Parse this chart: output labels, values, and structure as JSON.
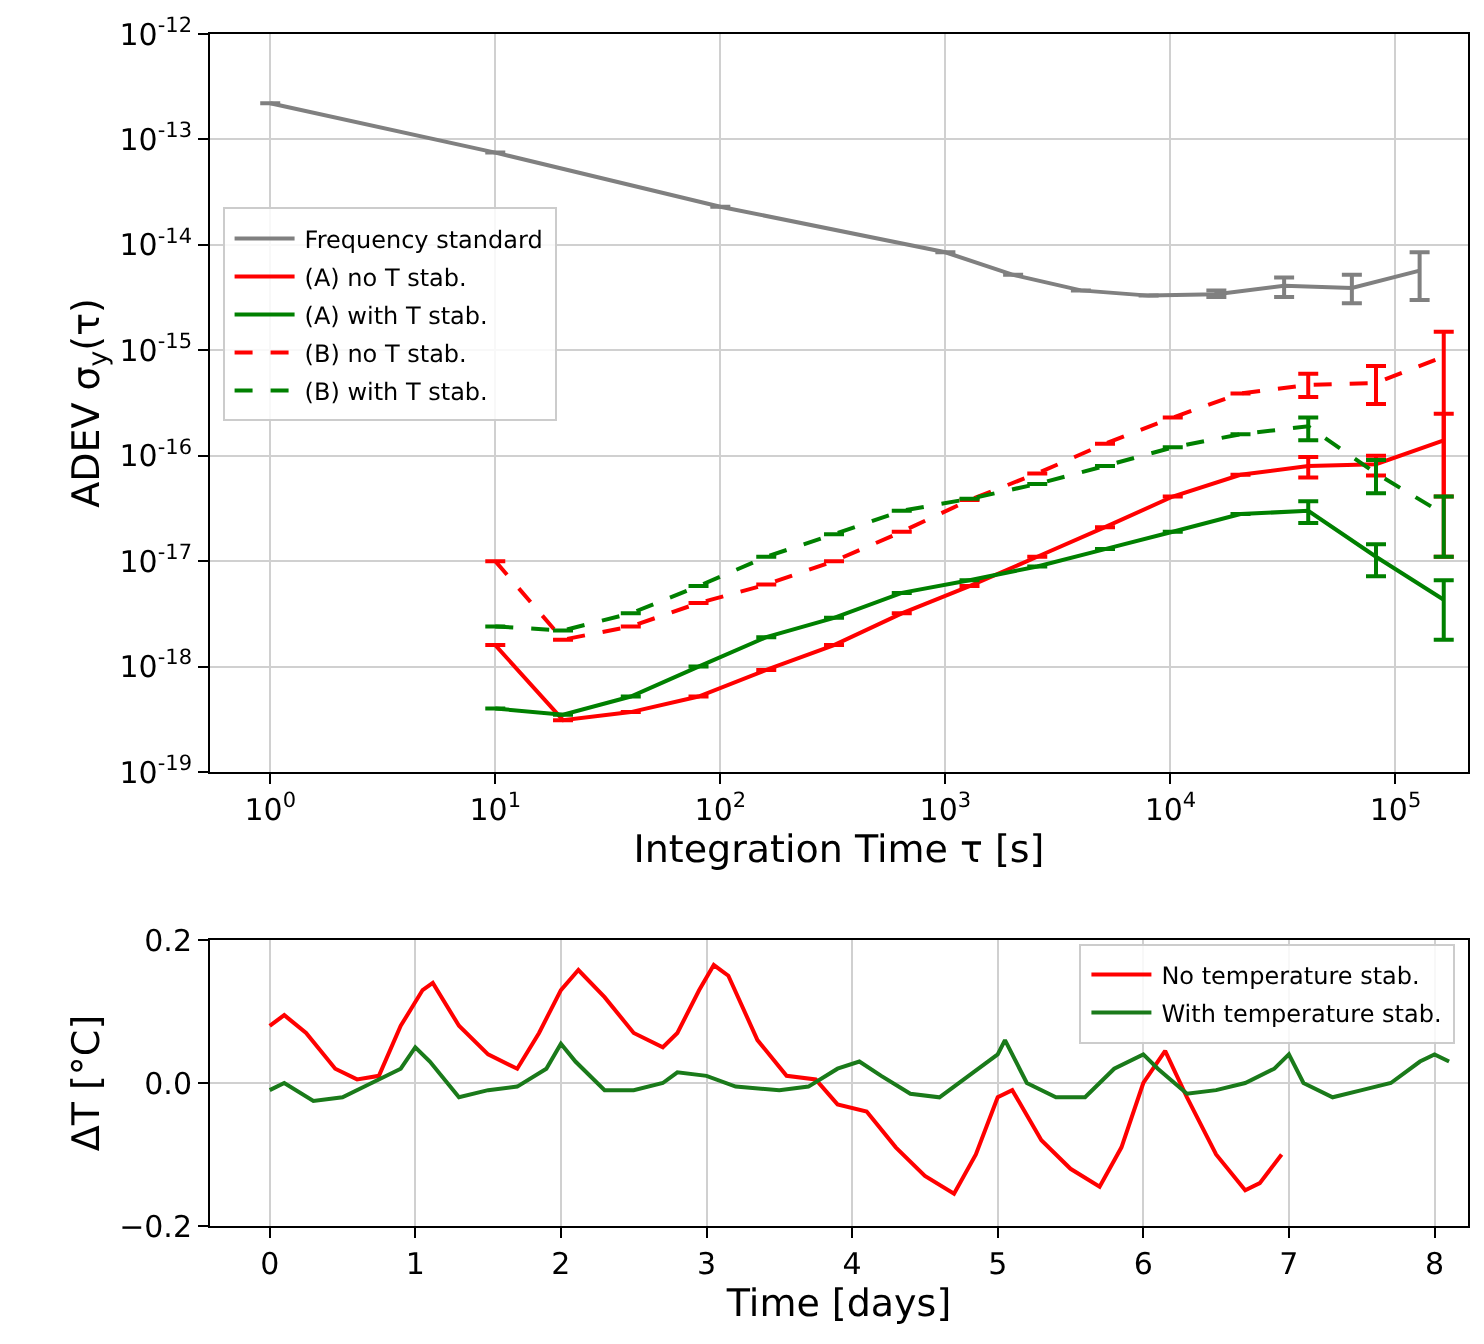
{
  "chart_data": [
    {
      "type": "line",
      "xlabel": "Integration Time τ [s]",
      "ylabel": "ADEV σ$_{y}$(τ)",
      "log": "xy",
      "xlim": [
        0.54,
        210000
      ],
      "ylim": [
        1e-19,
        1e-12
      ],
      "xticks": [
        {
          "value": 1,
          "label": "10$^{0}$"
        },
        {
          "value": 10,
          "label": "10$^{1}$"
        },
        {
          "value": 100,
          "label": "10$^{2}$"
        },
        {
          "value": 1000,
          "label": "10$^{3}$"
        },
        {
          "value": 10000,
          "label": "10$^{4}$"
        },
        {
          "value": 100000,
          "label": "10$^{5}$"
        }
      ],
      "yticks": [
        {
          "value": 1e-19,
          "label": "10$^{-19}$"
        },
        {
          "value": 1e-18,
          "label": "10$^{-18}$"
        },
        {
          "value": 1e-17,
          "label": "10$^{-17}$"
        },
        {
          "value": 1e-16,
          "label": "10$^{-16}$"
        },
        {
          "value": 1e-15,
          "label": "10$^{-15}$"
        },
        {
          "value": 1e-14,
          "label": "10$^{-14}$"
        },
        {
          "value": 1e-13,
          "label": "10$^{-13}$"
        },
        {
          "value": 1e-12,
          "label": "10$^{-12}$"
        }
      ],
      "grid": true,
      "legend": "left",
      "marker": "none",
      "x": [
        10,
        20,
        40,
        80,
        160,
        320,
        640,
        1280,
        2560,
        5120,
        10240,
        20480,
        40960,
        81920,
        163840
      ],
      "series": [
        {
          "name": "Frequency standard",
          "color": "#808080",
          "line_style": "solid",
          "x": [
            1,
            10,
            100,
            1000,
            2000,
            4000,
            8000,
            16000,
            32000,
            64000,
            128000
          ],
          "values": [
            2.2e-13,
            7.5e-14,
            2.3e-14,
            8.5e-15,
            5.2e-15,
            3.7e-15,
            3.3e-15,
            3.4e-15,
            4.1e-15,
            3.9e-15,
            5.7e-15
          ],
          "errors": [
            null,
            null,
            null,
            null,
            null,
            null,
            null,
            [
              3.7e-15,
              3.2e-15
            ],
            [
              4.9e-15,
              3.2e-15
            ],
            [
              5.2e-15,
              2.8e-15
            ],
            [
              8.5e-15,
              3e-15
            ]
          ]
        },
        {
          "name": "(A) no T stab.",
          "color": "#ff0000",
          "line_style": "solid",
          "values": [
            1.6e-18,
            3.1e-19,
            3.7e-19,
            5.2e-19,
            9.3e-19,
            1.6e-18,
            3.2e-18,
            5.8e-18,
            1.1e-17,
            2.1e-17,
            4.1e-17,
            6.6e-17,
            8e-17,
            8.3e-17,
            1.4e-16
          ],
          "errors": [
            null,
            null,
            null,
            null,
            null,
            null,
            null,
            null,
            null,
            null,
            null,
            null,
            [
              9.7e-17,
              6.2e-17
            ],
            [
              1e-16,
              6.5e-17
            ],
            [
              2.5e-16,
              1.1e-17
            ]
          ]
        },
        {
          "name": "(A) with T stab.",
          "color": "#008000",
          "line_style": "solid",
          "values": [
            4e-19,
            3.5e-19,
            5.2e-19,
            1e-18,
            1.9e-18,
            2.9e-18,
            5e-18,
            6.6e-18,
            8.9e-18,
            1.3e-17,
            1.9e-17,
            2.8e-17,
            3e-17,
            1.1e-17,
            4.3e-18
          ],
          "errors": [
            null,
            null,
            null,
            null,
            null,
            null,
            null,
            null,
            null,
            null,
            null,
            null,
            [
              3.7e-17,
              2.3e-17
            ],
            [
              1.45e-17,
              7.2e-18
            ],
            [
              6.6e-18,
              1.8e-18
            ]
          ]
        },
        {
          "name": "(B) no T stab.",
          "color": "#ff0000",
          "line_style": "dashed",
          "values": [
            1e-17,
            1.8e-18,
            2.4e-18,
            4e-18,
            6e-18,
            1e-17,
            1.9e-17,
            3.8e-17,
            6.8e-17,
            1.3e-16,
            2.3e-16,
            3.9e-16,
            4.7e-16,
            4.9e-16,
            8.7e-16
          ],
          "errors": [
            null,
            null,
            null,
            null,
            null,
            null,
            null,
            null,
            null,
            null,
            null,
            null,
            [
              6e-16,
              3.6e-16
            ],
            [
              7.1e-16,
              3.1e-16
            ],
            [
              1.5e-15,
              4.1e-17
            ]
          ]
        },
        {
          "name": "(B) with T stab.",
          "color": "#008000",
          "line_style": "dashed",
          "values": [
            2.4e-18,
            2.2e-18,
            3.2e-18,
            5.8e-18,
            1.1e-17,
            1.8e-17,
            3e-17,
            3.9e-17,
            5.4e-17,
            8e-17,
            1.2e-16,
            1.6e-16,
            1.9e-16,
            6.8e-17,
            2.8e-17
          ],
          "errors": [
            null,
            null,
            null,
            null,
            null,
            null,
            null,
            null,
            null,
            null,
            null,
            null,
            [
              2.3e-16,
              1.4e-16
            ],
            [
              9.1e-17,
              4.4e-17
            ],
            [
              4.1e-17,
              1.1e-17
            ]
          ]
        }
      ]
    },
    {
      "type": "line",
      "xlabel": "Time [days]",
      "ylabel": "ΔT [°C]",
      "xlim": [
        -0.41,
        8.23
      ],
      "ylim": [
        -0.2,
        0.2
      ],
      "xticks": [
        0,
        1,
        2,
        3,
        4,
        5,
        6,
        7,
        8
      ],
      "yticks": [
        {
          "value": -0.2,
          "label": "−0.2"
        },
        {
          "value": 0,
          "label": "0.0"
        },
        {
          "value": 0.2,
          "label": "0.2"
        }
      ],
      "grid": true,
      "legend": "top right",
      "marker": "none",
      "line_style": "solid",
      "series": [
        {
          "name": "No temperature stab.",
          "color": "#ff0000",
          "x": [
            0,
            0.1,
            0.25,
            0.45,
            0.6,
            0.75,
            0.9,
            1.05,
            1.12,
            1.3,
            1.5,
            1.7,
            1.85,
            2.0,
            2.12,
            2.3,
            2.5,
            2.7,
            2.8,
            2.95,
            3.05,
            3.15,
            3.35,
            3.55,
            3.75,
            3.9,
            4.1,
            4.3,
            4.5,
            4.7,
            4.85,
            5.0,
            5.1,
            5.3,
            5.5,
            5.7,
            5.85,
            6.0,
            6.15,
            6.3,
            6.5,
            6.7,
            6.8,
            6.95
          ],
          "values": [
            0.08,
            0.095,
            0.07,
            0.02,
            0.005,
            0.01,
            0.08,
            0.13,
            0.14,
            0.08,
            0.04,
            0.02,
            0.07,
            0.13,
            0.158,
            0.12,
            0.07,
            0.05,
            0.07,
            0.13,
            0.165,
            0.15,
            0.06,
            0.01,
            0.005,
            -0.03,
            -0.04,
            -0.09,
            -0.13,
            -0.155,
            -0.1,
            -0.02,
            -0.01,
            -0.08,
            -0.12,
            -0.145,
            -0.09,
            0.0,
            0.045,
            -0.02,
            -0.1,
            -0.15,
            -0.14,
            -0.1
          ]
        },
        {
          "name": "With temperature stab.",
          "color": "#1a7a1a",
          "x": [
            0,
            0.1,
            0.3,
            0.5,
            0.7,
            0.9,
            1.0,
            1.1,
            1.3,
            1.5,
            1.7,
            1.9,
            2.0,
            2.1,
            2.3,
            2.5,
            2.7,
            2.8,
            3.0,
            3.2,
            3.5,
            3.7,
            3.9,
            4.05,
            4.2,
            4.4,
            4.6,
            4.8,
            5.0,
            5.05,
            5.2,
            5.4,
            5.6,
            5.8,
            6.0,
            6.1,
            6.3,
            6.5,
            6.7,
            6.9,
            7.0,
            7.1,
            7.3,
            7.5,
            7.7,
            7.9,
            8.0,
            8.1
          ],
          "values": [
            -0.01,
            0.0,
            -0.025,
            -0.02,
            0.0,
            0.02,
            0.05,
            0.03,
            -0.02,
            -0.01,
            -0.005,
            0.02,
            0.055,
            0.03,
            -0.01,
            -0.01,
            0.0,
            0.015,
            0.01,
            -0.005,
            -0.01,
            -0.005,
            0.02,
            0.03,
            0.01,
            -0.015,
            -0.02,
            0.01,
            0.04,
            0.06,
            0.0,
            -0.02,
            -0.02,
            0.02,
            0.04,
            0.02,
            -0.015,
            -0.01,
            0.0,
            0.02,
            0.04,
            0.0,
            -0.02,
            -0.01,
            0.0,
            0.03,
            0.04,
            0.03
          ]
        }
      ]
    }
  ]
}
